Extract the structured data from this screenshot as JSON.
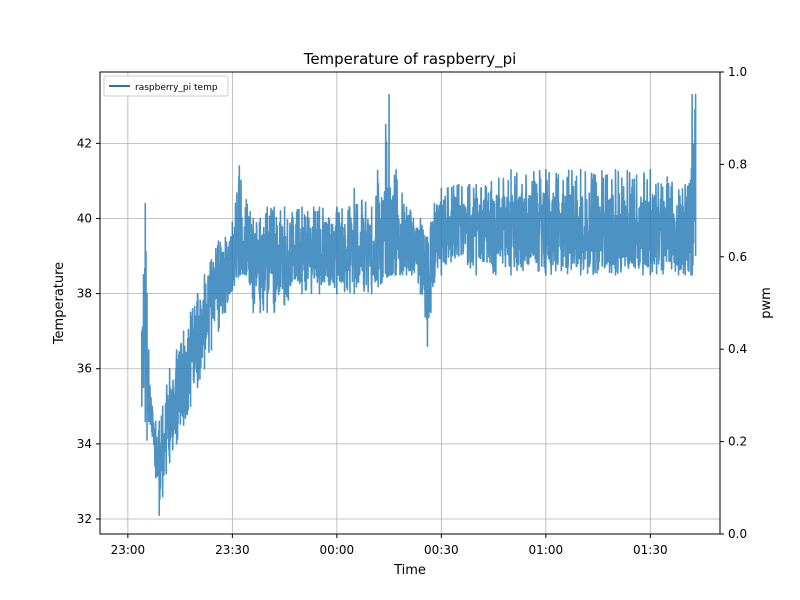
{
  "chart_data": {
    "type": "line",
    "title": "Temperature of raspberry_pi",
    "xlabel": "Time",
    "ylabel": "Temperature",
    "y2label": "pwm",
    "x_ticks": [
      "23:00",
      "23:30",
      "00:00",
      "00:30",
      "01:00",
      "01:30"
    ],
    "x_tick_minutes": [
      0,
      30,
      60,
      90,
      120,
      150
    ],
    "xlim_minutes": [
      -8,
      170
    ],
    "y_ticks": [
      "32",
      "34",
      "36",
      "38",
      "40",
      "42"
    ],
    "y_tick_values": [
      32,
      34,
      36,
      38,
      40,
      42
    ],
    "ylim": [
      31.6,
      43.9
    ],
    "y2_ticks": [
      "0.0",
      "0.2",
      "0.4",
      "0.6",
      "0.8",
      "1.0"
    ],
    "y2_tick_values": [
      0.0,
      0.2,
      0.4,
      0.6,
      0.8,
      1.0
    ],
    "y2lim": [
      0.0,
      1.0
    ],
    "grid": true,
    "legend_position": "top-left",
    "series": [
      {
        "name": "raspberry_pi temp",
        "color": "#1f77b4",
        "x_minutes": [
          4,
          4.5,
          5,
          5.5,
          6,
          7,
          8,
          9,
          10,
          12,
          14,
          16,
          18,
          20,
          22,
          24,
          26,
          28,
          30,
          32,
          34,
          36,
          38,
          40,
          42,
          45,
          50,
          55,
          60,
          65,
          70,
          75,
          77,
          80,
          84,
          86,
          87,
          88,
          90,
          95,
          100,
          110,
          120,
          130,
          140,
          150,
          160,
          162,
          163
        ],
        "min": [
          35.0,
          35.5,
          34.6,
          34.1,
          34.6,
          34.2,
          33.1,
          32.1,
          32.6,
          33.5,
          34.0,
          34.5,
          35.0,
          35.5,
          36.0,
          36.5,
          37.0,
          37.5,
          38.1,
          38.5,
          38.5,
          37.5,
          37.5,
          37.5,
          37.5,
          37.7,
          38.0,
          38.0,
          38.0,
          38.0,
          38.0,
          38.5,
          38.5,
          38.5,
          38.0,
          36.6,
          37.5,
          38.3,
          38.5,
          39.0,
          38.5,
          38.5,
          38.5,
          38.5,
          38.5,
          38.5,
          38.5,
          38.5,
          39.0
        ],
        "max": [
          37.0,
          38.5,
          40.4,
          38.0,
          36.5,
          35.0,
          34.6,
          34.6,
          35.0,
          36.0,
          36.5,
          37.0,
          37.5,
          38.0,
          38.5,
          38.9,
          39.4,
          39.5,
          39.9,
          41.4,
          40.5,
          40.0,
          40.0,
          40.3,
          40.3,
          40.3,
          40.3,
          40.3,
          40.3,
          40.8,
          40.3,
          43.3,
          41.3,
          40.3,
          40.0,
          39.5,
          39.9,
          40.4,
          40.8,
          40.9,
          40.9,
          41.3,
          41.3,
          41.3,
          41.3,
          41.3,
          40.9,
          43.3,
          43.3
        ],
        "mean": [
          36.0,
          37.0,
          37.5,
          36.0,
          35.5,
          34.5,
          33.8,
          33.3,
          33.8,
          34.7,
          35.3,
          35.8,
          36.2,
          36.8,
          37.3,
          37.8,
          38.3,
          38.7,
          39.1,
          39.3,
          39.2,
          39.0,
          38.9,
          38.9,
          39.0,
          39.0,
          39.1,
          39.1,
          39.1,
          39.2,
          39.2,
          39.3,
          39.3,
          39.3,
          39.0,
          38.0,
          38.5,
          39.4,
          39.6,
          39.7,
          39.7,
          39.7,
          39.7,
          39.7,
          39.7,
          39.7,
          39.6,
          39.9,
          42.4
        ]
      }
    ]
  }
}
